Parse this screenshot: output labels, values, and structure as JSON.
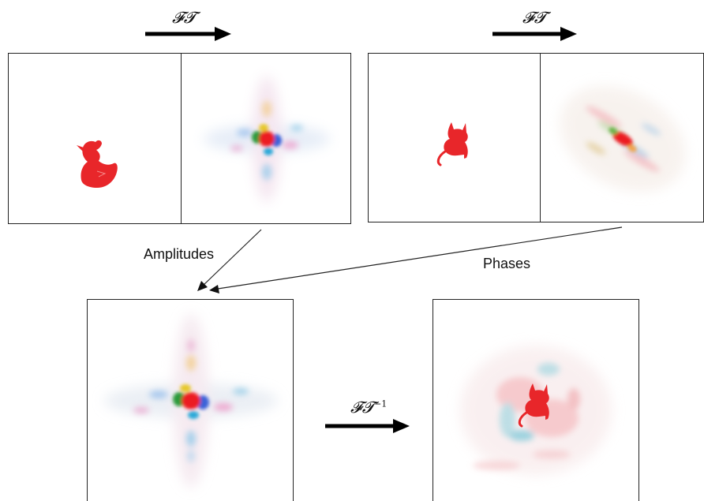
{
  "operators": {
    "ft_top_left": "𝓕𝓣",
    "ft_top_right": "𝓕𝓣",
    "ft_inverse": "𝓕𝓣",
    "ft_inverse_sup": "−1"
  },
  "labels": {
    "amplitudes": "Amplitudes",
    "phases": "Phases"
  },
  "colors": {
    "shape_red": "#e8262a",
    "frame": "#222222",
    "arrow": "#000000"
  },
  "icons": {
    "duck": "duck-silhouette-icon",
    "cat": "cat-silhouette-icon"
  }
}
